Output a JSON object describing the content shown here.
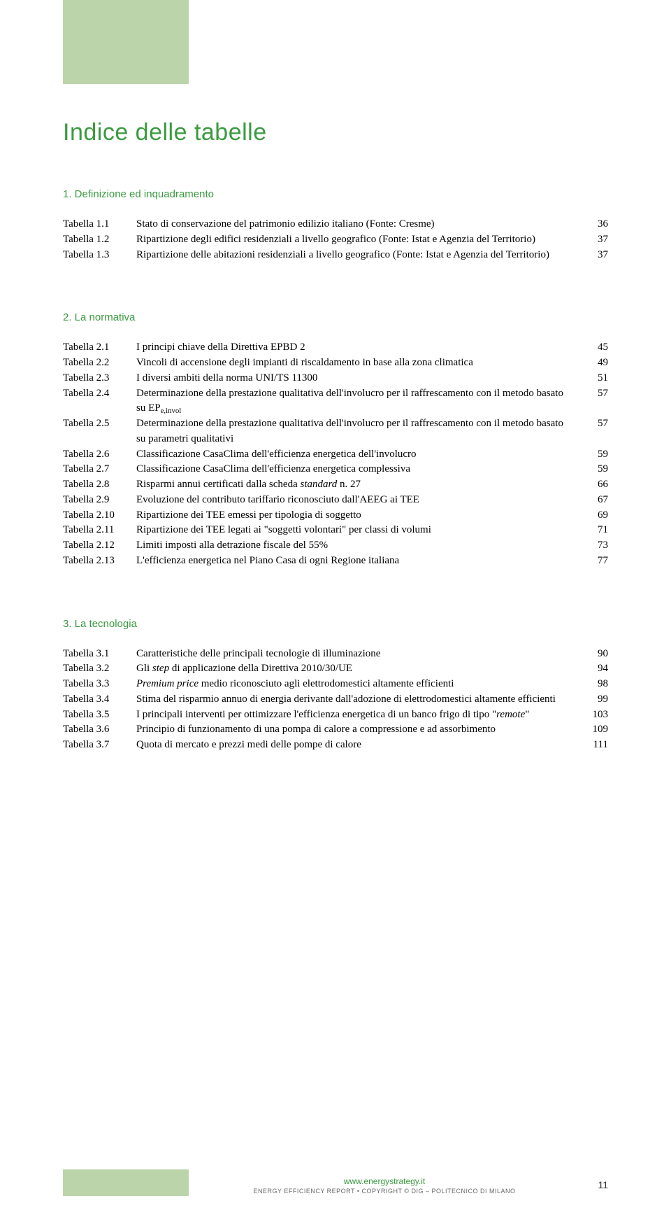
{
  "colors": {
    "green_text": "#3a9a3f",
    "green_block": "#bcd4a9",
    "body_text": "#000000",
    "footer_grey": "#666666",
    "background": "#ffffff"
  },
  "typography": {
    "title_font": "Arial",
    "title_size_pt": 26,
    "body_font": "Minion Pro / Georgia",
    "body_size_pt": 11,
    "section_size_pt": 11
  },
  "title": "Indice delle tabelle",
  "sections": [
    {
      "heading": "1. Definizione ed inquadramento",
      "rows": [
        {
          "label": "Tabella 1.1",
          "desc": "Stato di conservazione del patrimonio edilizio italiano (Fonte: Cresme)",
          "page": "36"
        },
        {
          "label": "Tabella 1.2",
          "desc": "Ripartizione degli edifici residenziali a livello geografico (Fonte: Istat e Agenzia del Territorio)",
          "page": "37"
        },
        {
          "label": "Tabella 1.3",
          "desc": "Ripartizione delle abitazioni residenziali a livello geografico (Fonte: Istat e Agenzia del Territorio)",
          "page": "37"
        }
      ]
    },
    {
      "heading": "2. La normativa",
      "rows": [
        {
          "label": "Tabella 2.1",
          "desc": "I principi chiave della Direttiva EPBD 2",
          "page": "45"
        },
        {
          "label": "Tabella 2.2",
          "desc": "Vincoli di accensione degli impianti di riscaldamento in base alla zona climatica",
          "page": "49"
        },
        {
          "label": "Tabella 2.3",
          "desc": "I diversi ambiti della norma UNI/TS 11300",
          "page": "51"
        },
        {
          "label": "Tabella 2.4",
          "desc_html": "Determinazione della prestazione qualitativa dell'involucro per il raffrescamento con il metodo basato su EP<sub>e,invol</sub>",
          "page": "57"
        },
        {
          "label": "Tabella 2.5",
          "desc": "Determinazione della prestazione qualitativa dell'involucro per il raffrescamento con il metodo basato su parametri qualitativi",
          "page": "57"
        },
        {
          "label": "Tabella 2.6",
          "desc": "Classificazione CasaClima dell'efficienza energetica dell'involucro",
          "page": "59"
        },
        {
          "label": "Tabella 2.7",
          "desc": "Classificazione CasaClima dell'efficienza energetica complessiva",
          "page": "59"
        },
        {
          "label": "Tabella 2.8",
          "desc_html": "Risparmi annui certificati dalla scheda <span class=\"ital\">standard</span> n. 27",
          "page": "66"
        },
        {
          "label": "Tabella 2.9",
          "desc": "Evoluzione del contributo tariffario riconosciuto dall'AEEG ai TEE",
          "page": "67"
        },
        {
          "label": "Tabella 2.10",
          "desc": "Ripartizione dei TEE emessi per tipologia di soggetto",
          "page": "69"
        },
        {
          "label": "Tabella 2.11",
          "desc": "Ripartizione dei TEE legati ai \"soggetti volontari\" per classi di volumi",
          "page": "71"
        },
        {
          "label": "Tabella 2.12",
          "desc": "Limiti imposti alla detrazione fiscale del 55%",
          "page": "73"
        },
        {
          "label": "Tabella 2.13",
          "desc": "L'efficienza energetica nel Piano Casa di ogni Regione italiana",
          "page": "77"
        }
      ]
    },
    {
      "heading": "3. La tecnologia",
      "rows": [
        {
          "label": "Tabella 3.1",
          "desc": "Caratteristiche delle principali tecnologie di illuminazione",
          "page": "90"
        },
        {
          "label": "Tabella 3.2",
          "desc_html": "Gli <span class=\"ital\">step</span> di applicazione della Direttiva 2010/30/UE",
          "page": "94"
        },
        {
          "label": "Tabella 3.3",
          "desc_html": "<span class=\"ital\">Premium price</span> medio riconosciuto agli elettrodomestici altamente efficienti",
          "page": "98"
        },
        {
          "label": "Tabella 3.4",
          "desc": "Stima del risparmio annuo di energia derivante dall'adozione di elettrodomestici altamente efficienti",
          "page": "99"
        },
        {
          "label": "Tabella 3.5",
          "desc_html": "I principali interventi per ottimizzare l'efficienza energetica di un banco frigo di tipo \"<span class=\"ital\">remote</span>\"",
          "page": "103"
        },
        {
          "label": "Tabella 3.6",
          "desc": "Principio di funzionamento di una pompa di calore a compressione e ad assorbimento",
          "page": "109"
        },
        {
          "label": "Tabella 3.7",
          "desc": "Quota di mercato e prezzi medi delle pompe di calore",
          "page": "111"
        }
      ]
    }
  ],
  "footer": {
    "url": "www.energystrategy.it",
    "credit": "ENERGY EFFICIENCY REPORT • COPYRIGHT © DIG – POLITECNICO DI MILANO",
    "page_number": "11"
  }
}
